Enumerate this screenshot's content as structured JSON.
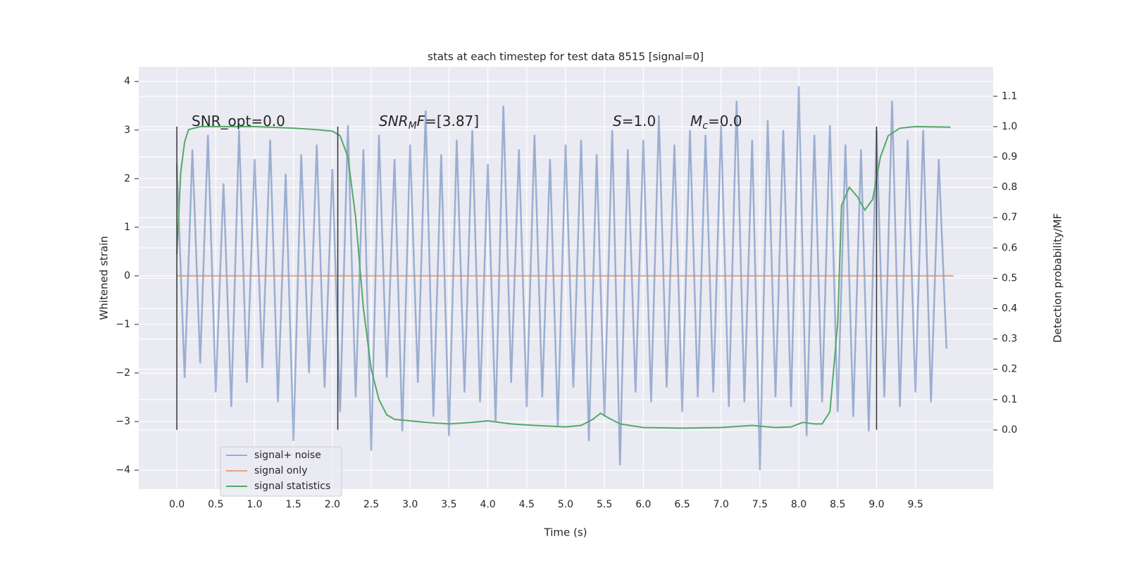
{
  "chart_data": {
    "type": "line",
    "title": "stats at each timestep for test data 8515 [signal=0]",
    "xlabel": "Time (s)",
    "ylabel": "Whitened strain",
    "y2label": "Detection probability/MF",
    "xlim": [
      -0.49,
      10.5
    ],
    "ylim": [
      -4.39,
      4.3
    ],
    "y2lim": [
      -0.195,
      1.197
    ],
    "xticks": [
      {
        "value": 0,
        "label": "0.0"
      },
      {
        "value": 0.5,
        "label": "0.5"
      },
      {
        "value": 1,
        "label": "1.0"
      },
      {
        "value": 1.5,
        "label": "1.5"
      },
      {
        "value": 2,
        "label": "2.0"
      },
      {
        "value": 2.5,
        "label": "2.5"
      },
      {
        "value": 3,
        "label": "3.0"
      },
      {
        "value": 3.5,
        "label": "3.5"
      },
      {
        "value": 4,
        "label": "4.0"
      },
      {
        "value": 4.5,
        "label": "4.5"
      },
      {
        "value": 5,
        "label": "5.0"
      },
      {
        "value": 5.5,
        "label": "5.5"
      },
      {
        "value": 6,
        "label": "6.0"
      },
      {
        "value": 6.5,
        "label": "6.5"
      },
      {
        "value": 7,
        "label": "7.0"
      },
      {
        "value": 7.5,
        "label": "7.5"
      },
      {
        "value": 8,
        "label": "8.0"
      },
      {
        "value": 8.5,
        "label": "8.5"
      },
      {
        "value": 9,
        "label": "9.0"
      },
      {
        "value": 9.5,
        "label": "9.5"
      }
    ],
    "yticks": [
      {
        "value": -4,
        "label": "−4"
      },
      {
        "value": -3,
        "label": "−3"
      },
      {
        "value": -2,
        "label": "−2"
      },
      {
        "value": -1,
        "label": "−1"
      },
      0,
      1,
      2,
      3,
      4
    ],
    "y2ticks": [
      {
        "value": 0,
        "label": "0.0"
      },
      {
        "value": 0.1,
        "label": "0.1"
      },
      {
        "value": 0.2,
        "label": "0.2"
      },
      {
        "value": 0.3,
        "label": "0.3"
      },
      {
        "value": 0.4,
        "label": "0.4"
      },
      {
        "value": 0.5,
        "label": "0.5"
      },
      {
        "value": 0.6,
        "label": "0.6"
      },
      {
        "value": 0.7,
        "label": "0.7"
      },
      {
        "value": 0.8,
        "label": "0.8"
      },
      {
        "value": 0.9,
        "label": "0.9"
      },
      {
        "value": 1,
        "label": "1.0"
      },
      {
        "value": 1.1,
        "label": "1.1"
      }
    ],
    "grid": true,
    "legend": "lower left",
    "vlines": {
      "x": [
        0,
        2.07,
        9.0
      ],
      "ymin": -3.17,
      "ymax": 3.07,
      "color": "#333333"
    },
    "annotations": [
      [
        {
          "t": "SNR_opt=0.0",
          "s": "normal"
        }
      ],
      [
        {
          "t": "SNR",
          "s": "italic"
        },
        {
          "t": "M",
          "s": "sub"
        },
        {
          "t": "F",
          "s": "italic"
        },
        {
          "t": "=[3.87]",
          "s": "normal"
        }
      ],
      [
        {
          "t": "S",
          "s": "italic"
        },
        {
          "t": "=1.0",
          "s": "normal"
        }
      ],
      [
        {
          "t": "M",
          "s": "italic"
        },
        {
          "t": "c",
          "s": "sub"
        },
        {
          "t": "=0.0",
          "s": "normal"
        }
      ]
    ],
    "series": [
      {
        "name": "signal+ noise",
        "color": "#4c72b0",
        "alpha": 0.5,
        "x": [
          0,
          0.1,
          0.2,
          0.3,
          0.4,
          0.5,
          0.6,
          0.7,
          0.8,
          0.9,
          1,
          1.1,
          1.2,
          1.3,
          1.4,
          1.5,
          1.6,
          1.7,
          1.8,
          1.9,
          2,
          2.1,
          2.2,
          2.3,
          2.4,
          2.5,
          2.6,
          2.7,
          2.8,
          2.9,
          3,
          3.1,
          3.2,
          3.3,
          3.4,
          3.5,
          3.6,
          3.7,
          3.8,
          3.9,
          4,
          4.1,
          4.2,
          4.3,
          4.4,
          4.5,
          4.6,
          4.7,
          4.8,
          4.9,
          5,
          5.1,
          5.2,
          5.3,
          5.4,
          5.5,
          5.6,
          5.7,
          5.8,
          5.9,
          6,
          6.1,
          6.2,
          6.3,
          6.4,
          6.5,
          6.6,
          6.7,
          6.8,
          6.9,
          7,
          7.1,
          7.2,
          7.3,
          7.4,
          7.5,
          7.6,
          7.7,
          7.8,
          7.9,
          8,
          8.1,
          8.2,
          8.3,
          8.4,
          8.5,
          8.6,
          8.7,
          8.8,
          8.9,
          9,
          9.1,
          9.2,
          9.3,
          9.4,
          9.5,
          9.6,
          9.7,
          9.8,
          9.9
        ],
        "values": [
          2.3,
          -2.1,
          2.6,
          -1.8,
          2.9,
          -2.4,
          1.9,
          -2.7,
          3.0,
          -2.2,
          2.4,
          -1.9,
          2.8,
          -2.6,
          2.1,
          -3.4,
          2.5,
          -2.0,
          2.7,
          -2.3,
          2.2,
          -2.8,
          3.1,
          -2.5,
          2.6,
          -3.6,
          2.9,
          -2.1,
          2.4,
          -3.2,
          2.7,
          -2.2,
          3.4,
          -2.9,
          2.5,
          -3.3,
          2.8,
          -2.4,
          3.0,
          -2.6,
          2.3,
          -3.0,
          3.5,
          -2.2,
          2.6,
          -2.7,
          2.9,
          -2.5,
          2.4,
          -3.1,
          2.7,
          -2.3,
          2.8,
          -3.4,
          2.5,
          -2.9,
          3.0,
          -3.9,
          2.6,
          -2.4,
          2.8,
          -2.6,
          3.3,
          -2.3,
          2.7,
          -2.8,
          3.0,
          -2.5,
          2.9,
          -2.4,
          3.1,
          -2.7,
          3.6,
          -2.6,
          2.8,
          -4.0,
          3.2,
          -2.5,
          3.0,
          -2.7,
          3.9,
          -3.3,
          2.9,
          -2.6,
          3.1,
          -2.8,
          2.7,
          -2.9,
          2.6,
          -3.2,
          3.0,
          -2.5,
          3.6,
          -2.7,
          2.8,
          -2.4,
          3.0,
          -2.6,
          2.4,
          -1.5
        ]
      },
      {
        "name": "signal only",
        "color": "#dd8452",
        "alpha": 0.7,
        "x": [
          0,
          9.99
        ],
        "values": [
          0,
          0
        ]
      },
      {
        "name": "signal statistics",
        "color": "#55a868",
        "alpha": 1,
        "axis": "y2",
        "x": [
          0,
          0.05,
          0.1,
          0.15,
          0.3,
          1.0,
          1.5,
          1.8,
          2.0,
          2.1,
          2.2,
          2.3,
          2.4,
          2.5,
          2.6,
          2.7,
          2.8,
          3.0,
          3.2,
          3.5,
          3.8,
          4.0,
          4.3,
          4.6,
          5.0,
          5.2,
          5.35,
          5.45,
          5.55,
          5.7,
          6.0,
          6.5,
          7.0,
          7.4,
          7.7,
          7.9,
          8.05,
          8.2,
          8.3,
          8.4,
          8.5,
          8.55,
          8.65,
          8.75,
          8.85,
          8.95,
          9.05,
          9.15,
          9.3,
          9.5,
          9.95
        ],
        "values": [
          0.58,
          0.85,
          0.95,
          0.99,
          1.0,
          1.0,
          0.995,
          0.99,
          0.985,
          0.97,
          0.9,
          0.7,
          0.4,
          0.2,
          0.1,
          0.05,
          0.035,
          0.03,
          0.025,
          0.02,
          0.025,
          0.03,
          0.02,
          0.015,
          0.01,
          0.015,
          0.035,
          0.055,
          0.04,
          0.02,
          0.008,
          0.006,
          0.008,
          0.015,
          0.008,
          0.01,
          0.025,
          0.02,
          0.02,
          0.06,
          0.35,
          0.74,
          0.8,
          0.77,
          0.725,
          0.76,
          0.9,
          0.97,
          0.995,
          1.0,
          0.998
        ]
      }
    ]
  }
}
